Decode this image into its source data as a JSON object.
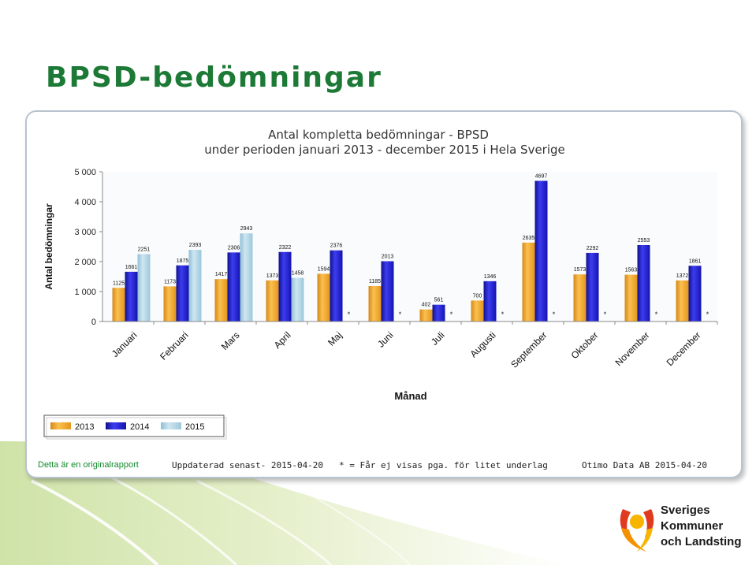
{
  "slide": {
    "title": "BPSD-bedömningar"
  },
  "chart_data": {
    "type": "bar",
    "title": "Antal kompletta bedömningar - BPSD",
    "subtitle": "under perioden januari 2013 - december 2015 i Hela Sverige",
    "xlabel": "Månad",
    "ylabel": "Antal bedömningar",
    "ylim": [
      0,
      5000
    ],
    "yticks": [
      0,
      1000,
      2000,
      3000,
      4000,
      5000
    ],
    "ytick_labels": [
      "0",
      "1 000",
      "2 000",
      "3 000",
      "4 000",
      "5 000"
    ],
    "grid": false,
    "legend_position": "bottom-left",
    "categories": [
      "Januari",
      "Februari",
      "Mars",
      "April",
      "Maj",
      "Juni",
      "Juli",
      "Augusti",
      "September",
      "Oktober",
      "November",
      "December"
    ],
    "series": [
      {
        "name": "2013",
        "color": "#f5a623",
        "values": [
          1125,
          1173,
          1417,
          1373,
          1594,
          1185,
          402,
          700,
          2635,
          1573,
          1563,
          1372
        ]
      },
      {
        "name": "2014",
        "color": "#1b1bcc",
        "values": [
          1661,
          1875,
          2306,
          2322,
          2376,
          2013,
          561,
          1346,
          4697,
          2292,
          2553,
          1861
        ]
      },
      {
        "name": "2015",
        "color": "#a9d0e2",
        "values": [
          2251,
          2393,
          2943,
          1458,
          null,
          null,
          null,
          null,
          null,
          null,
          null,
          null
        ]
      }
    ],
    "missing_marker": "*"
  },
  "footer": {
    "original_report": "Detta är en originalrapport",
    "updated": "Uppdaterad senast- 2015-04-20",
    "note": "* = Får ej visas pga. för litet underlag",
    "source": "Otimo Data AB 2015-04-20"
  },
  "logo": {
    "lines": [
      "Sveriges",
      "Kommuner",
      "och Landsting"
    ]
  },
  "colors": {
    "title_green": "#1d7a36",
    "link_green": "#118a2c"
  }
}
